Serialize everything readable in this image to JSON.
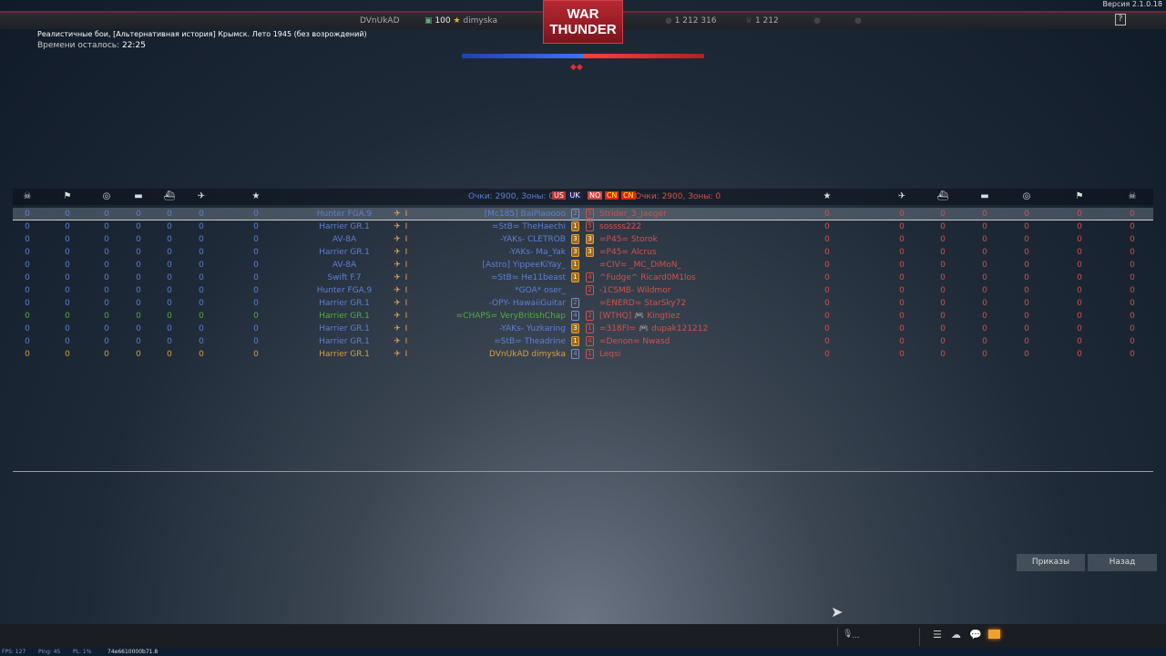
{
  "header": {
    "player_left": "DVnUkAD",
    "rank_level": "100",
    "player_name": "dimyska",
    "logo": "WAR THUNDER",
    "stat1": "1 212 316",
    "stat2": "1 212",
    "version": "Версия 2.1.0.18",
    "help": "?"
  },
  "mission": {
    "title": "Реалистичные бои, [Альтернативная история] Крымск. Лето 1945 (без возрождений)",
    "timer_label": "Времени осталось:",
    "timer_value": "22:25"
  },
  "score": {
    "blue_fraction": 0.5,
    "colors": {
      "blue": "#3050d0",
      "red": "#d03030"
    }
  },
  "teams": {
    "left_label": "Очки: 2900, Зоны: 0",
    "right_label": "Очки: 2900, Зоны: 0",
    "left_flags": [
      "us",
      "uk"
    ],
    "right_flags": [
      "no",
      "cn",
      "cn"
    ]
  },
  "columns": {
    "icons": [
      "skull-icon",
      "capture-icon",
      "assist-icon",
      "tank-kill-icon",
      "ship-kill-icon",
      "air-kill-icon",
      "star-icon"
    ]
  },
  "colors": {
    "blue": "#5b7fd6",
    "green": "#4caf3f",
    "gold": "#d4a040",
    "red": "#d0524a"
  },
  "left_rows": [
    {
      "vehicle": "Hunter FGA.9",
      "name": "[Mc185] BaiPiaoooo",
      "rank": "2",
      "shield": false,
      "color": "blue",
      "stats": [
        "0",
        "0",
        "0",
        "0",
        "0",
        "0",
        "0"
      ]
    },
    {
      "vehicle": "Harrier GR.1",
      "name": "=StB= TheHaechi",
      "rank": "1",
      "shield": true,
      "color": "blue",
      "stats": [
        "0",
        "0",
        "0",
        "0",
        "0",
        "0",
        "0"
      ]
    },
    {
      "vehicle": "AV-8A",
      "name": "-YAKs- CLETROB",
      "rank": "3",
      "shield": true,
      "color": "blue",
      "stats": [
        "0",
        "0",
        "0",
        "0",
        "0",
        "0",
        "0"
      ]
    },
    {
      "vehicle": "Harrier GR.1",
      "name": "-YAKs- Ma_Yak",
      "rank": "3",
      "shield": true,
      "color": "blue",
      "stats": [
        "0",
        "0",
        "0",
        "0",
        "0",
        "0",
        "0"
      ]
    },
    {
      "vehicle": "AV-8A",
      "name": "[Astro] YippeeKiYay_",
      "rank": "1",
      "shield": true,
      "color": "blue",
      "stats": [
        "0",
        "0",
        "0",
        "0",
        "0",
        "0",
        "0"
      ]
    },
    {
      "vehicle": "Swift F.7",
      "name": "=StB= He11beast",
      "rank": "1",
      "shield": true,
      "color": "blue",
      "stats": [
        "0",
        "0",
        "0",
        "0",
        "0",
        "0",
        "0"
      ]
    },
    {
      "vehicle": "Hunter FGA.9",
      "name": "*GOA* oser_",
      "rank": "",
      "shield": false,
      "color": "blue",
      "stats": [
        "0",
        "0",
        "0",
        "0",
        "0",
        "0",
        "0"
      ]
    },
    {
      "vehicle": "Harrier GR.1",
      "name": "-OPY- HawaiiGuitar",
      "rank": "2",
      "shield": false,
      "color": "blue",
      "stats": [
        "0",
        "0",
        "0",
        "0",
        "0",
        "0",
        "0"
      ]
    },
    {
      "vehicle": "Harrier GR.1",
      "name": "=CHAPS= VeryBritishChap",
      "rank": "4",
      "shield": false,
      "color": "green",
      "stats": [
        "0",
        "0",
        "0",
        "0",
        "0",
        "0",
        "0"
      ]
    },
    {
      "vehicle": "Harrier GR.1",
      "name": "-YAKs- Yuzkaring",
      "rank": "3",
      "shield": true,
      "color": "blue",
      "stats": [
        "0",
        "0",
        "0",
        "0",
        "0",
        "0",
        "0"
      ]
    },
    {
      "vehicle": "Harrier GR.1",
      "name": "=StB= Theadrine",
      "rank": "1",
      "shield": true,
      "color": "blue",
      "stats": [
        "0",
        "0",
        "0",
        "0",
        "0",
        "0",
        "0"
      ]
    },
    {
      "vehicle": "Harrier GR.1",
      "name": "DVnUkAD dimyska",
      "rank": "4",
      "shield": false,
      "color": "gold",
      "stats": [
        "0",
        "0",
        "0",
        "0",
        "0",
        "0",
        "0"
      ]
    }
  ],
  "right_rows": [
    {
      "name": "Strider_3_Jaeger",
      "rank": "5",
      "shield": false,
      "stats": [
        "0",
        "0",
        "0",
        "0",
        "0",
        "0",
        "0"
      ]
    },
    {
      "name": "sossss222",
      "rank": "5",
      "shield": false,
      "stats": [
        "0",
        "0",
        "0",
        "0",
        "0",
        "0",
        "0"
      ]
    },
    {
      "name": "=P45= Storok",
      "rank": "3",
      "shield": true,
      "stats": [
        "0",
        "0",
        "0",
        "0",
        "0",
        "0",
        "0"
      ]
    },
    {
      "name": "=P45= Alcrus",
      "rank": "3",
      "shield": true,
      "stats": [
        "0",
        "0",
        "0",
        "0",
        "0",
        "0",
        "0"
      ]
    },
    {
      "name": "=CIV= _MC_DiMoN_",
      "rank": "",
      "shield": false,
      "stats": [
        "0",
        "0",
        "0",
        "0",
        "0",
        "0",
        "0"
      ]
    },
    {
      "name": "^Fudge^ Ricard0M1los",
      "rank": "4",
      "shield": false,
      "stats": [
        "0",
        "0",
        "0",
        "0",
        "0",
        "0",
        "0"
      ]
    },
    {
      "name": "-1CSMB- Wildmor",
      "rank": "2",
      "shield": false,
      "stats": [
        "0",
        "0",
        "0",
        "0",
        "0",
        "0",
        "0"
      ]
    },
    {
      "name": "=ENERD= StarSky72",
      "rank": "",
      "shield": false,
      "stats": [
        "0",
        "0",
        "0",
        "0",
        "0",
        "0",
        "0"
      ]
    },
    {
      "name": "[WTHQ] 🎮 Kingtiez",
      "rank": "2",
      "shield": false,
      "stats": [
        "0",
        "0",
        "0",
        "0",
        "0",
        "0",
        "0"
      ]
    },
    {
      "name": "=318FI= 🎮 dupak121212",
      "rank": "1",
      "shield": false,
      "stats": [
        "0",
        "0",
        "0",
        "0",
        "0",
        "0",
        "0"
      ]
    },
    {
      "name": "=Denon= Nwasd",
      "rank": "4",
      "shield": false,
      "stats": [
        "0",
        "0",
        "0",
        "0",
        "0",
        "0",
        "0"
      ]
    },
    {
      "name": "Leqsi",
      "rank": "1",
      "shield": false,
      "stats": [
        "0",
        "0",
        "0",
        "0",
        "0",
        "0",
        "0"
      ]
    }
  ],
  "buttons": {
    "orders": "Приказы",
    "back": "Назад"
  },
  "chat": {
    "voice": "..."
  },
  "status": {
    "fps": "FPS: 127",
    "ping": "Ping: 45",
    "pl": "PL: 1%",
    "session": "74e6610000b71.8"
  }
}
